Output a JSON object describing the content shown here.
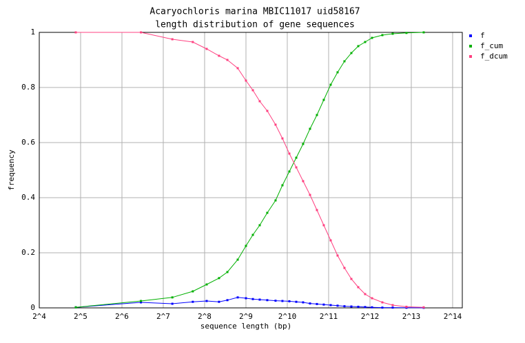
{
  "chart_data": {
    "type": "line",
    "title": "Acaryochloris marina MBIC11017 uid58167",
    "subtitle": "length distribution of gene sequences",
    "x_label": "sequence length (bp)",
    "y_label": "frequency",
    "xscale": "log",
    "xlim": [
      16,
      19270
    ],
    "xticks": [
      {
        "value": 16,
        "label": "2^4"
      },
      {
        "value": 32,
        "label": "2^5"
      },
      {
        "value": 64,
        "label": "2^6"
      },
      {
        "value": 128,
        "label": "2^7"
      },
      {
        "value": 256,
        "label": "2^8"
      },
      {
        "value": 512,
        "label": "2^9"
      },
      {
        "value": 1024,
        "label": "2^10"
      },
      {
        "value": 2048,
        "label": "2^11"
      },
      {
        "value": 4096,
        "label": "2^12"
      },
      {
        "value": 8192,
        "label": "2^13"
      },
      {
        "value": 16384,
        "label": "2^14"
      }
    ],
    "ylim": [
      0,
      1
    ],
    "yticks": [
      0,
      0.2,
      0.4,
      0.6,
      0.8,
      1
    ],
    "grid": true,
    "legend": "right",
    "x": [
      29.5,
      88,
      149,
      210,
      265,
      326,
      375,
      446,
      512,
      575,
      645,
      732,
      841,
      944,
      1060,
      1190,
      1335,
      1499,
      1683,
      1888,
      2120,
      2380,
      2671,
      2998,
      3366,
      3777,
      4240,
      5042,
      5996,
      7554,
      10086
    ],
    "series": [
      {
        "name": "f",
        "color": "#0000ff",
        "values": [
          0.002,
          0.02,
          0.015,
          0.022,
          0.025,
          0.022,
          0.028,
          0.038,
          0.035,
          0.032,
          0.03,
          0.028,
          0.026,
          0.025,
          0.024,
          0.022,
          0.02,
          0.016,
          0.014,
          0.012,
          0.01,
          0.008,
          0.006,
          0.005,
          0.004,
          0.003,
          0.002,
          0.001,
          0.001,
          0.0005,
          0.0003
        ]
      },
      {
        "name": "f_cum",
        "color": "#00b000",
        "values": [
          0.002,
          0.025,
          0.038,
          0.06,
          0.085,
          0.108,
          0.13,
          0.175,
          0.225,
          0.265,
          0.3,
          0.345,
          0.39,
          0.445,
          0.495,
          0.545,
          0.595,
          0.65,
          0.7,
          0.755,
          0.81,
          0.855,
          0.895,
          0.925,
          0.95,
          0.965,
          0.98,
          0.99,
          0.995,
          0.998,
          1
        ]
      },
      {
        "name": "f_dcum",
        "color": "#ff4080",
        "values": [
          1,
          1,
          0.975,
          0.965,
          0.94,
          0.915,
          0.9,
          0.87,
          0.825,
          0.79,
          0.75,
          0.715,
          0.665,
          0.615,
          0.56,
          0.51,
          0.46,
          0.41,
          0.355,
          0.3,
          0.245,
          0.19,
          0.145,
          0.105,
          0.075,
          0.05,
          0.035,
          0.02,
          0.01,
          0.004,
          0.002
        ]
      }
    ]
  }
}
